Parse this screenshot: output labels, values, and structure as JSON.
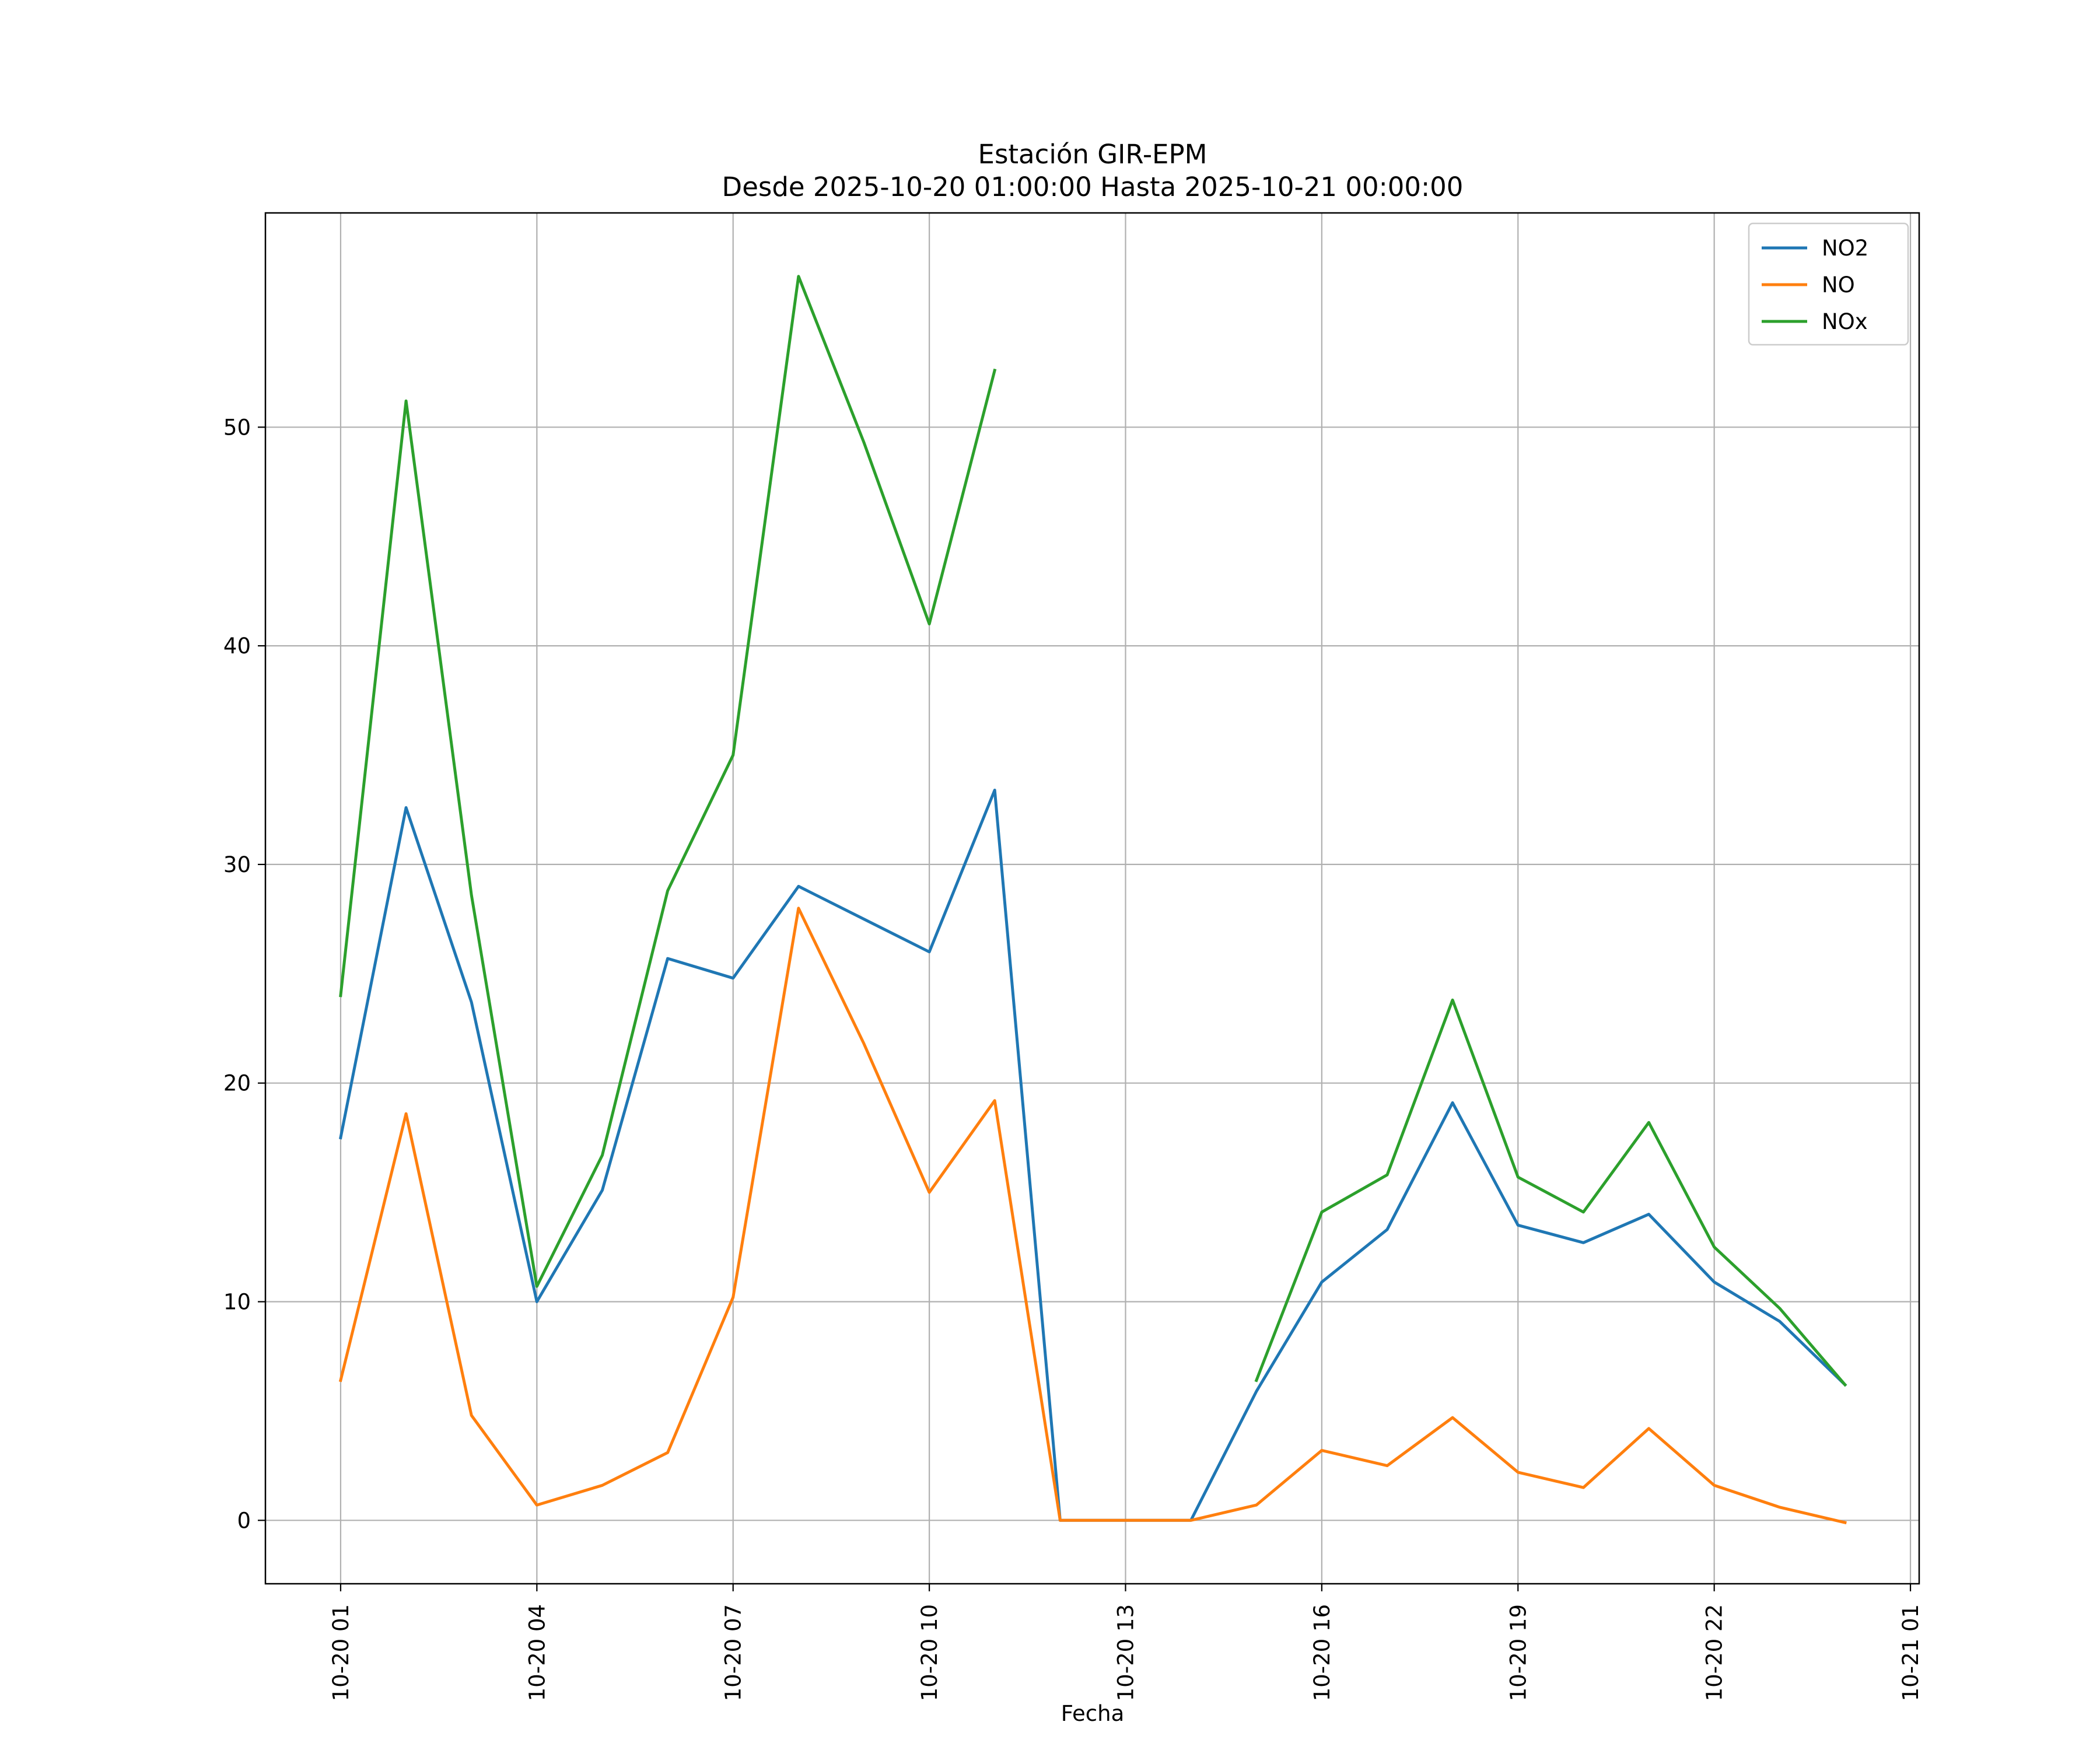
{
  "chart_data": {
    "type": "line",
    "title": "Estación GIR-EPM",
    "subtitle": "Desde 2025-10-20 01:00:00 Hasta 2025-10-21 00:00:00",
    "xlabel": "Fecha",
    "ylabel": "",
    "x": [
      "2025-10-20 01:00",
      "2025-10-20 02:00",
      "2025-10-20 03:00",
      "2025-10-20 04:00",
      "2025-10-20 05:00",
      "2025-10-20 06:00",
      "2025-10-20 07:00",
      "2025-10-20 08:00",
      "2025-10-20 09:00",
      "2025-10-20 10:00",
      "2025-10-20 11:00",
      "2025-10-20 12:00",
      "2025-10-20 13:00",
      "2025-10-20 14:00",
      "2025-10-20 15:00",
      "2025-10-20 16:00",
      "2025-10-20 17:00",
      "2025-10-20 18:00",
      "2025-10-20 19:00",
      "2025-10-20 20:00",
      "2025-10-20 21:00",
      "2025-10-20 22:00",
      "2025-10-20 23:00",
      "2025-10-21 00:00"
    ],
    "x_ticks": [
      "10-20 01",
      "10-20 04",
      "10-20 07",
      "10-20 10",
      "10-20 13",
      "10-20 16",
      "10-20 19",
      "10-20 22",
      "10-21 01"
    ],
    "x_range": [
      "2025-10-19 23:51",
      "2025-10-21 01:08"
    ],
    "y_ticks": [
      0,
      10,
      20,
      30,
      40,
      50
    ],
    "ylim": [
      -2.9,
      59.8
    ],
    "grid": true,
    "legend_position": "top-right",
    "series": [
      {
        "name": "NO2",
        "color": "#1f77b4",
        "values": [
          17.5,
          32.6,
          23.7,
          10.0,
          15.1,
          25.7,
          24.8,
          29.0,
          27.5,
          26.0,
          33.4,
          0.0,
          0.0,
          0.0,
          5.9,
          10.9,
          13.3,
          19.1,
          13.5,
          12.7,
          14.0,
          10.9,
          9.1,
          6.2
        ]
      },
      {
        "name": "NO",
        "color": "#ff7f0e",
        "values": [
          6.4,
          18.6,
          4.8,
          0.7,
          1.6,
          3.1,
          10.2,
          28.0,
          21.8,
          15.0,
          19.2,
          0.0,
          0.0,
          0.0,
          0.7,
          3.2,
          2.5,
          4.7,
          2.2,
          1.5,
          4.2,
          1.6,
          0.6,
          -0.1
        ]
      },
      {
        "name": "NOx",
        "color": "#2ca02c",
        "values": [
          24.0,
          51.2,
          28.6,
          10.7,
          16.7,
          28.8,
          35.0,
          56.9,
          49.3,
          41.0,
          52.6,
          null,
          null,
          null,
          6.4,
          14.1,
          15.8,
          23.8,
          15.7,
          14.1,
          18.2,
          12.5,
          9.7,
          6.2
        ]
      }
    ]
  }
}
